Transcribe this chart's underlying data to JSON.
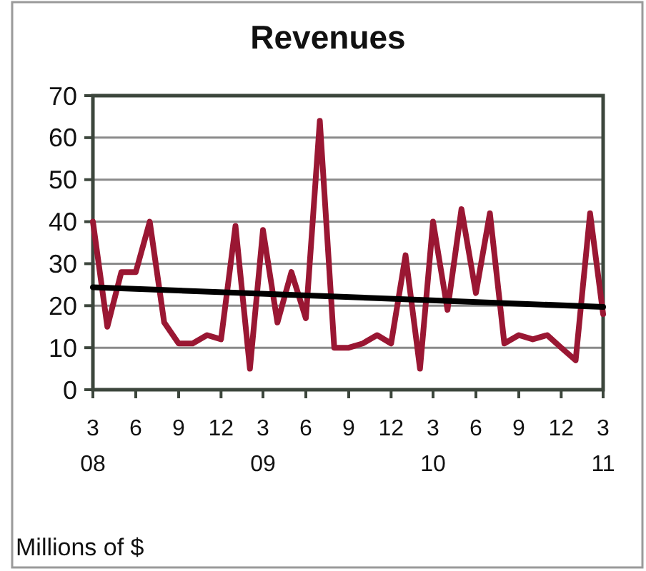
{
  "chart_data": {
    "type": "line",
    "title": "Revenues",
    "ylabel": "Millions of $",
    "x": [
      "2008-03",
      "2008-04",
      "2008-05",
      "2008-06",
      "2008-07",
      "2008-08",
      "2008-09",
      "2008-10",
      "2008-11",
      "2008-12",
      "2009-01",
      "2009-02",
      "2009-03",
      "2009-04",
      "2009-05",
      "2009-06",
      "2009-07",
      "2009-08",
      "2009-09",
      "2009-10",
      "2009-11",
      "2009-12",
      "2010-01",
      "2010-02",
      "2010-03",
      "2010-04",
      "2010-05",
      "2010-06",
      "2010-07",
      "2010-08",
      "2010-09",
      "2010-10",
      "2010-11",
      "2010-12",
      "2011-01",
      "2011-02",
      "2011-03"
    ],
    "series": [
      {
        "color": "#9a1733",
        "values": [
          40,
          15,
          28,
          28,
          40,
          16,
          11,
          11,
          13,
          12,
          39,
          5,
          38,
          16,
          28,
          17,
          64,
          10,
          10,
          11,
          13,
          11,
          32,
          5,
          40,
          19,
          43,
          23,
          42,
          11,
          13,
          12,
          13,
          10,
          7,
          42,
          18
        ]
      },
      {
        "type": "line",
        "color": "#000000",
        "x": [
          "2008-03",
          "2011-03"
        ],
        "values": [
          24.4,
          19.7
        ]
      }
    ],
    "xlim": [
      "2008-03",
      "2011-03"
    ],
    "xticks": [
      {
        "value": "2008-03",
        "label": "3\n08"
      },
      {
        "value": "2008-06",
        "label": "6"
      },
      {
        "value": "2008-09",
        "label": "9"
      },
      {
        "value": "2008-12",
        "label": "12"
      },
      {
        "value": "2009-03",
        "label": "3\n09"
      },
      {
        "value": "2009-06",
        "label": "6"
      },
      {
        "value": "2009-09",
        "label": "9"
      },
      {
        "value": "2009-12",
        "label": "12"
      },
      {
        "value": "2010-03",
        "label": "3\n10"
      },
      {
        "value": "2010-06",
        "label": "6"
      },
      {
        "value": "2010-09",
        "label": "9"
      },
      {
        "value": "2010-12",
        "label": "12"
      },
      {
        "value": "2011-03",
        "label": "3\n11"
      }
    ],
    "ylim": [
      0,
      70
    ],
    "yticks": [
      0,
      10,
      20,
      30,
      40,
      50,
      60,
      70
    ],
    "grid": "y"
  }
}
